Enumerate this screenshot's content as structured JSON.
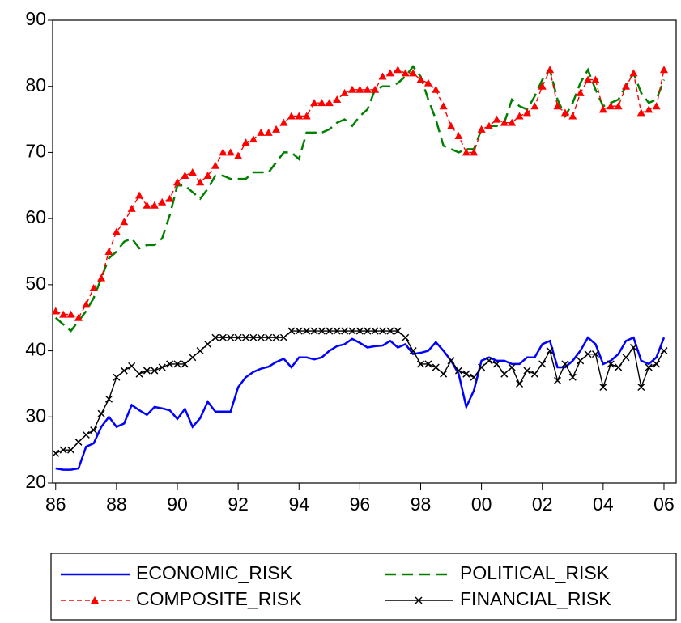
{
  "chart_data": {
    "type": "line",
    "x": [
      1986,
      1986.25,
      1986.5,
      1986.75,
      1987,
      1987.25,
      1987.5,
      1987.75,
      1988,
      1988.25,
      1988.5,
      1988.75,
      1989,
      1989.25,
      1989.5,
      1989.75,
      1990,
      1990.25,
      1990.5,
      1990.75,
      1991,
      1991.25,
      1991.5,
      1991.75,
      1992,
      1992.25,
      1992.5,
      1992.75,
      1993,
      1993.25,
      1993.5,
      1993.75,
      1994,
      1994.25,
      1994.5,
      1994.75,
      1995,
      1995.25,
      1995.5,
      1995.75,
      1996,
      1996.25,
      1996.5,
      1996.75,
      1997,
      1997.25,
      1997.5,
      1997.75,
      1998,
      1998.25,
      1998.5,
      1998.75,
      1999,
      1999.25,
      1999.5,
      1999.75,
      2000,
      2000.25,
      2000.5,
      2000.75,
      2001,
      2001.25,
      2001.5,
      2001.75,
      2002,
      2002.25,
      2002.5,
      2002.75,
      2003,
      2003.25,
      2003.5,
      2003.75,
      2004,
      2004.25,
      2004.5,
      2004.75,
      2005,
      2005.25,
      2005.5,
      2005.75,
      2006
    ],
    "series": [
      {
        "name": "ECONOMIC_RISK",
        "color": "#0000ff",
        "dash": "solid",
        "values": [
          22.2,
          22,
          22,
          22.2,
          25.5,
          26,
          28.5,
          30,
          28.5,
          29,
          31.8,
          31,
          30.3,
          31.5,
          31.3,
          31,
          29.7,
          31.2,
          28.5,
          29.8,
          32.3,
          30.8,
          30.8,
          30.8,
          34.5,
          36,
          36.8,
          37.3,
          37.6,
          38.3,
          38.8,
          37.5,
          39,
          39,
          38.7,
          39,
          40,
          40.7,
          41,
          41.8,
          41.2,
          40.5,
          40.7,
          40.8,
          41.5,
          40.5,
          41,
          39.5,
          39.7,
          40,
          41.3,
          40,
          38.5,
          36.5,
          31.5,
          34,
          38.5,
          39,
          38.5,
          38.5,
          38,
          38,
          39,
          39,
          41,
          41.5,
          37.5,
          37.5,
          38.5,
          40,
          42,
          41,
          38,
          38.5,
          39.5,
          41.5,
          42,
          38.5,
          38,
          39,
          42
        ]
      },
      {
        "name": "POLITICAL_RISK",
        "color": "#008000",
        "dash": "dashed",
        "values": [
          45,
          44,
          43,
          44.5,
          46,
          48,
          51,
          54,
          55,
          56.5,
          57,
          55.5,
          56,
          56,
          57,
          60.5,
          65,
          65,
          64,
          63,
          64.5,
          66.5,
          66.5,
          66,
          66,
          66,
          67,
          67,
          67,
          68.5,
          70,
          70,
          69,
          73,
          73,
          73,
          73.5,
          74.5,
          75,
          74,
          75.5,
          76.5,
          79.5,
          80,
          80,
          80.5,
          81.5,
          83,
          81.5,
          78,
          75,
          71,
          70.5,
          70,
          70.5,
          70.5,
          73.5,
          74,
          74,
          74.5,
          78,
          77,
          76.5,
          78.5,
          81,
          82.5,
          78,
          75.5,
          77.5,
          80.5,
          82.5,
          79.5,
          77,
          77.5,
          78,
          80,
          82,
          79,
          77.5,
          78,
          81
        ]
      },
      {
        "name": "COMPOSITE_RISK",
        "color": "#ff0000",
        "dash": "dashed",
        "marker": "triangle",
        "values": [
          46,
          45.5,
          45.5,
          45,
          47,
          49.5,
          51,
          55,
          58,
          59.5,
          61.5,
          63.5,
          62,
          62,
          62.5,
          63,
          65.5,
          66.5,
          67,
          65.5,
          66.5,
          68,
          70,
          70,
          69.5,
          71.5,
          72,
          73,
          73,
          73.5,
          74.5,
          75.5,
          75.5,
          75.5,
          77.5,
          77.5,
          77.5,
          78,
          79,
          79.5,
          79.5,
          79.5,
          79.5,
          81.5,
          82,
          82.5,
          82,
          82,
          81,
          80.5,
          79.5,
          77,
          74,
          72.5,
          70,
          70,
          73.5,
          74,
          75,
          74.5,
          74.5,
          75.5,
          76,
          77,
          80,
          82.5,
          77,
          76,
          75.5,
          79,
          81,
          81,
          76.5,
          77,
          77,
          80,
          82,
          76,
          76.5,
          77,
          82.5
        ]
      },
      {
        "name": "FINANCIAL_RISK",
        "color": "#000000",
        "dash": "solid",
        "marker": "x",
        "values": [
          24.5,
          25,
          25,
          26.2,
          27.3,
          28,
          30.5,
          32.7,
          36,
          37,
          37.7,
          36.5,
          37,
          37,
          37.5,
          38,
          38,
          38,
          39,
          40,
          41,
          42,
          42,
          42,
          42,
          42,
          42,
          42,
          42,
          42,
          42,
          43,
          43,
          43,
          43,
          43,
          43,
          43,
          43,
          43,
          43,
          43,
          43,
          43,
          43,
          43,
          42,
          40,
          38,
          38,
          37.5,
          36.5,
          38.5,
          37,
          36.5,
          36,
          37.5,
          38.5,
          38,
          36.5,
          37.5,
          35,
          37,
          36.5,
          38,
          40,
          35.5,
          38,
          36,
          38.5,
          39.5,
          39.5,
          34.5,
          38,
          37.5,
          39,
          40.5,
          34.5,
          37.5,
          38,
          40
        ]
      }
    ],
    "xlim": [
      1985.9,
      2006.4
    ],
    "xticks": [
      {
        "value": 1986,
        "label": "86"
      },
      {
        "value": 1988,
        "label": "88"
      },
      {
        "value": 1990,
        "label": "90"
      },
      {
        "value": 1992,
        "label": "92"
      },
      {
        "value": 1994,
        "label": "94"
      },
      {
        "value": 1996,
        "label": "96"
      },
      {
        "value": 1998,
        "label": "98"
      },
      {
        "value": 2000,
        "label": "00"
      },
      {
        "value": 2002,
        "label": "02"
      },
      {
        "value": 2004,
        "label": "04"
      },
      {
        "value": 2006,
        "label": "06"
      }
    ],
    "ylim": [
      20,
      90
    ],
    "yticks": [
      20,
      30,
      40,
      50,
      60,
      70,
      80,
      90
    ]
  }
}
